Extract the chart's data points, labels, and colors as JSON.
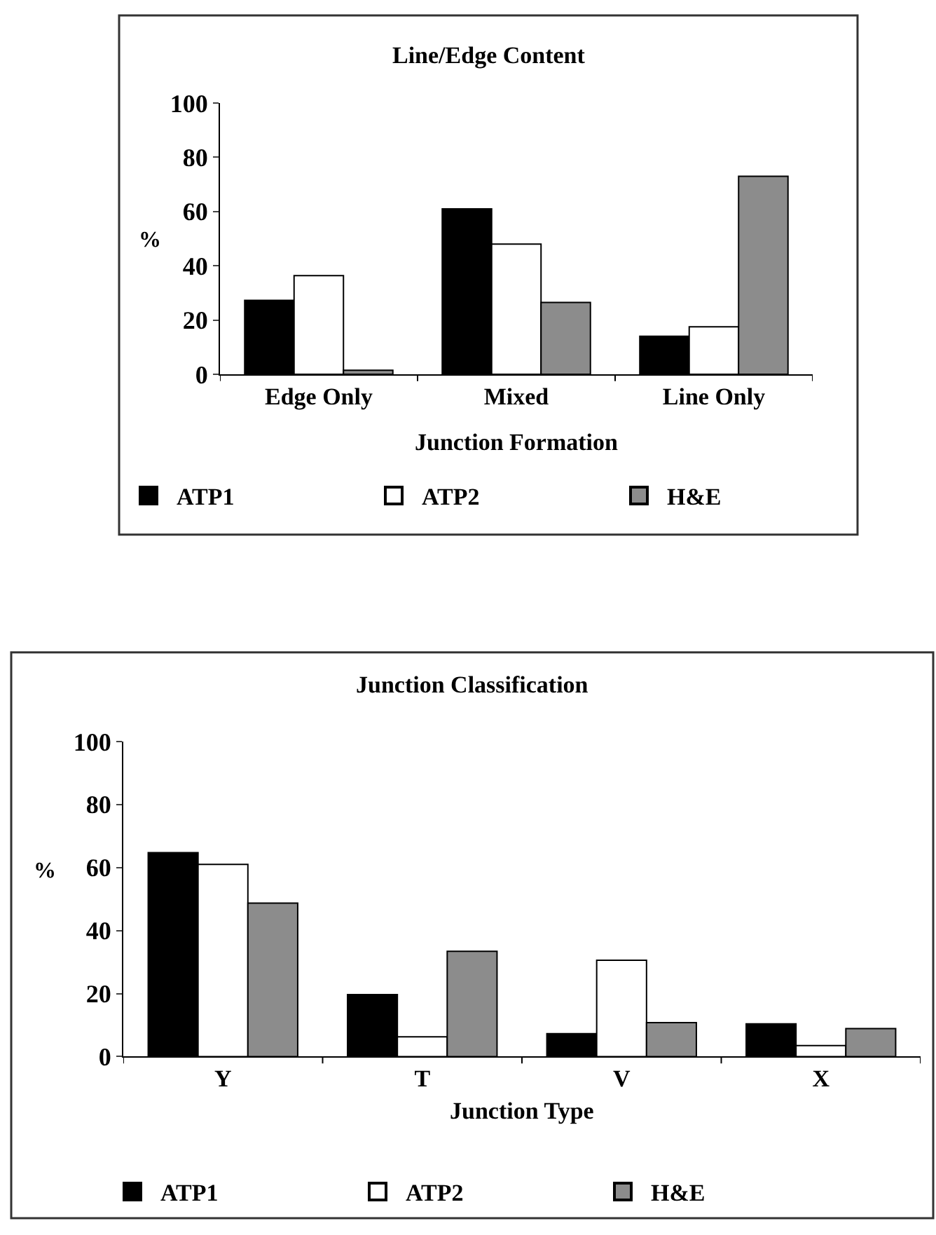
{
  "chart_data": [
    {
      "type": "bar",
      "title": "Line/Edge Content",
      "xlabel": "Junction Formation",
      "ylabel": "%",
      "categories": [
        "Edge Only",
        "Mixed",
        "Line Only"
      ],
      "ylim": [
        0,
        100
      ],
      "yticks": [
        0,
        20,
        40,
        60,
        80,
        100
      ],
      "legend": "bottom",
      "series": [
        {
          "name": "ATP1",
          "color": "#000000",
          "values": [
            27.3,
            61,
            14
          ]
        },
        {
          "name": "ATP2",
          "color": "#ffffff",
          "values": [
            36.4,
            48,
            17.5
          ]
        },
        {
          "name": "H&E",
          "color": "#8c8c8c",
          "values": [
            1.5,
            26.5,
            73
          ]
        }
      ]
    },
    {
      "type": "bar",
      "title": "Junction Classification",
      "xlabel": "Junction Type",
      "ylabel": "%",
      "categories": [
        "Y",
        "T",
        "V",
        "X"
      ],
      "ylim": [
        0,
        100
      ],
      "yticks": [
        0,
        20,
        40,
        60,
        80,
        100
      ],
      "legend": "bottom",
      "series": [
        {
          "name": "ATP1",
          "color": "#000000",
          "values": [
            64.7,
            19.7,
            7.3,
            10.4
          ]
        },
        {
          "name": "ATP2",
          "color": "#ffffff",
          "values": [
            61,
            6.3,
            30.6,
            3.5
          ]
        },
        {
          "name": "H&E",
          "color": "#8c8c8c",
          "values": [
            48.7,
            33.4,
            10.8,
            8.9
          ]
        }
      ]
    }
  ]
}
